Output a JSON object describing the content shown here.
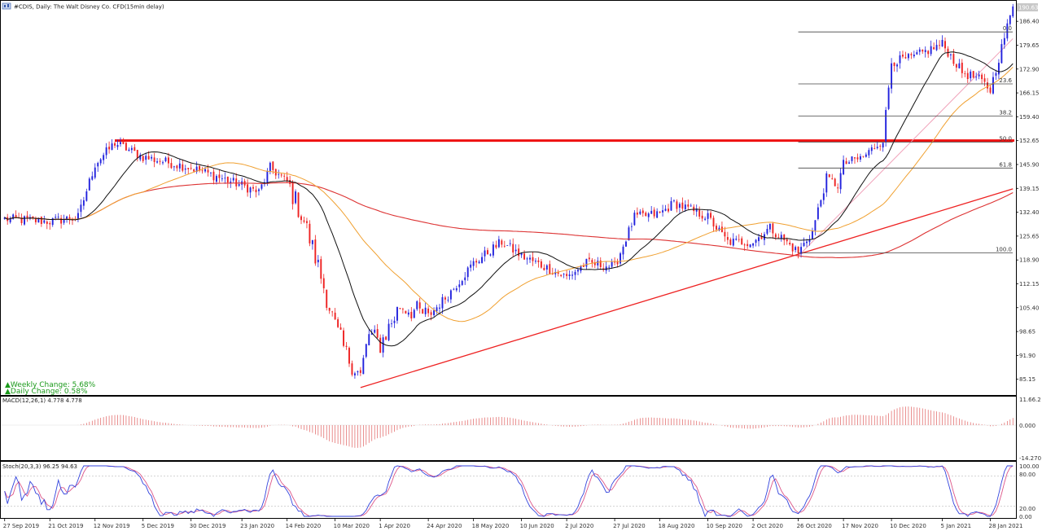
{
  "header": {
    "title": "#CDIS, Daily:  The Walt Disney Co. CFD(15min delay)",
    "last_price": "190.63"
  },
  "info": {
    "weekly_change": "▲Weekly Change: 5.68%",
    "daily_change": "▲Daily Change: 0.58%"
  },
  "macd_panel": {
    "label": "MACD(12,26,1) 4.778 4.778",
    "axis": [
      "11.66.2",
      "0.000",
      "-14.270"
    ]
  },
  "stoch_panel": {
    "label": "Stoch(20,3,3) 96.25 94.63",
    "axis": [
      "100.00",
      "80.00",
      "20.00",
      "0.00"
    ]
  },
  "colors": {
    "bull": "#2222dd",
    "bear": "#ee2222",
    "ma_short": "#111111",
    "ma_mid": "#f0a030",
    "ma_long": "#dd3333",
    "resistance": "#ee1111",
    "trendline": "#ee2222",
    "fib": "#444444",
    "macd": "#e06060",
    "stoch_main": "#3344dd",
    "stoch_signal": "#dd5588"
  },
  "chart_data": {
    "type": "candlestick",
    "symbol": "#CDIS",
    "timeframe": "Daily",
    "price_axis": [
      "186.40",
      "179.65",
      "172.90",
      "166.15",
      "159.40",
      "152.65",
      "145.90",
      "139.15",
      "132.40",
      "125.65",
      "118.90",
      "112.15",
      "105.40",
      "98.65",
      "91.90",
      "85.15"
    ],
    "ylim": [
      80.7,
      192.2
    ],
    "date_axis": [
      "27 Sep 2019",
      "21 Oct 2019",
      "12 Nov 2019",
      "5 Dec 2019",
      "30 Dec 2019",
      "23 Jan 2020",
      "14 Feb 2020",
      "10 Mar 2020",
      "1 Apr 2020",
      "24 Apr 2020",
      "18 May 2020",
      "10 Jun 2020",
      "2 Jul 2020",
      "27 Jul 2020",
      "18 Aug 2020",
      "10 Sep 2020",
      "2 Oct 2020",
      "26 Oct 2020",
      "17 Nov 2020",
      "10 Dec 2020",
      "5 Jan 2021",
      "28 Jan 2021"
    ],
    "anchor_path": [
      [
        "27 Sep 2019",
        130.5
      ],
      [
        "21 Oct 2019",
        129.8
      ],
      [
        "4 Nov 2019",
        131.0
      ],
      [
        "12 Nov 2019",
        146.0
      ],
      [
        "21 Nov 2019",
        152.0
      ],
      [
        "5 Dec 2019",
        148.0
      ],
      [
        "30 Dec 2019",
        145.0
      ],
      [
        "23 Jan 2020",
        140.0
      ],
      [
        "31 Jan 2020",
        138.0
      ],
      [
        "6 Feb 2020",
        145.0
      ],
      [
        "14 Feb 2020",
        141.0
      ],
      [
        "24 Feb 2020",
        130.0
      ],
      [
        "2 Mar 2020",
        117.0
      ],
      [
        "10 Mar 2020",
        100.0
      ],
      [
        "16 Mar 2020",
        92.0
      ],
      [
        "23 Mar 2020",
        86.0
      ],
      [
        "26 Mar 2020",
        98.0
      ],
      [
        "1 Apr 2020",
        95.0
      ],
      [
        "10 Apr 2020",
        106.0
      ],
      [
        "24 Apr 2020",
        103.0
      ],
      [
        "5 May 2020",
        109.0
      ],
      [
        "18 May 2020",
        118.0
      ],
      [
        "1 Jun 2020",
        124.0
      ],
      [
        "10 Jun 2020",
        120.0
      ],
      [
        "2 Jul 2020",
        114.0
      ],
      [
        "13 Jul 2020",
        118.0
      ],
      [
        "27 Jul 2020",
        117.0
      ],
      [
        "5 Aug 2020",
        131.0
      ],
      [
        "18 Aug 2020",
        132.0
      ],
      [
        "25 Aug 2020",
        135.0
      ],
      [
        "10 Sep 2020",
        131.0
      ],
      [
        "21 Sep 2020",
        124.0
      ],
      [
        "2 Oct 2020",
        124.0
      ],
      [
        "12 Oct 2020",
        128.0
      ],
      [
        "26 Oct 2020",
        121.0
      ],
      [
        "2 Nov 2020",
        127.0
      ],
      [
        "9 Nov 2020",
        142.0
      ],
      [
        "13 Nov 2020",
        140.0
      ],
      [
        "17 Nov 2020",
        146.0
      ],
      [
        "26 Nov 2020",
        148.0
      ],
      [
        "7 Dec 2020",
        153.0
      ],
      [
        "10 Dec 2020",
        175.0
      ],
      [
        "21 Dec 2020",
        176.0
      ],
      [
        "5 Jan 2021",
        180.0
      ],
      [
        "14 Jan 2021",
        172.0
      ],
      [
        "22 Jan 2021",
        170.0
      ],
      [
        "28 Jan 2021",
        167.0
      ],
      [
        "3 Feb 2021",
        179.0
      ],
      [
        "9 Feb 2021",
        190.6
      ]
    ],
    "overlays": {
      "ma_short": "black moving average",
      "ma_mid": "orange moving average",
      "ma_long": "red moving average"
    },
    "horizontal_resistance": {
      "price": 152.65,
      "start": "21 Nov 2019"
    },
    "trendlines": [
      {
        "from": [
          "23 Mar 2020",
          82.8
        ],
        "to": [
          "9 Feb 2021",
          139.0
        ]
      },
      {
        "from": [
          "26 Oct 2020",
          120.0
        ],
        "to": [
          "9 Feb 2021",
          181.5
        ],
        "style": "thin-pink"
      }
    ],
    "fibonacci": {
      "start": "26 Oct 2020",
      "levels": [
        {
          "label": "0.0",
          "price": 183.4
        },
        {
          "label": "23.6",
          "price": 168.7
        },
        {
          "label": "38.2",
          "price": 159.6
        },
        {
          "label": "50.0",
          "price": 152.2
        },
        {
          "label": "61.8",
          "price": 144.9
        },
        {
          "label": "100.0",
          "price": 120.9
        }
      ]
    }
  }
}
